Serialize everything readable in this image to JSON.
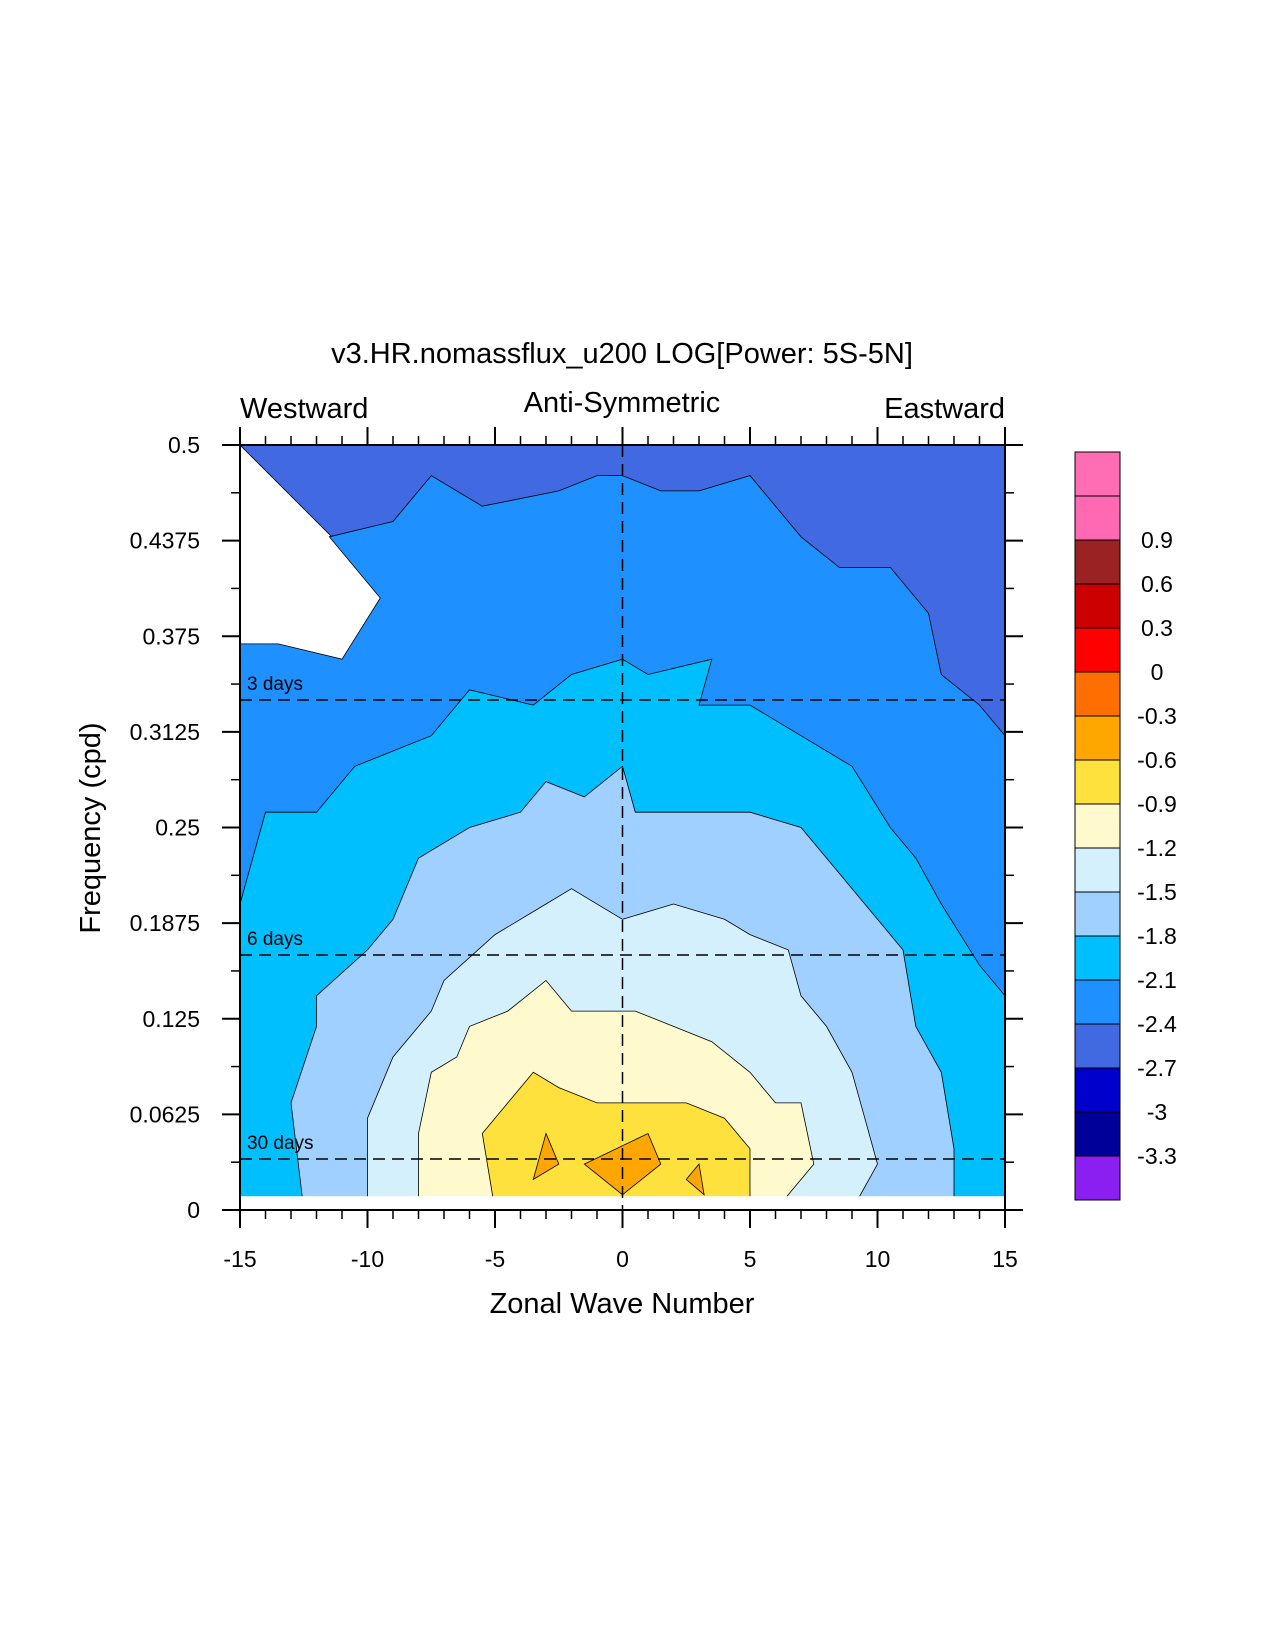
{
  "chart_data": {
    "type": "heatmap",
    "title": "v3.HR.nomassflux_u200 LOG[Power: 5S-5N]",
    "subtitle_left": "Westward",
    "subtitle_center": "Anti-Symmetric",
    "subtitle_right": "Eastward",
    "xlabel": "Zonal Wave Number",
    "ylabel": "Frequency (cpd)",
    "xlim": [
      -15,
      15
    ],
    "ylim": [
      0,
      0.5
    ],
    "x_ticks": [
      -15,
      -10,
      -5,
      0,
      5,
      10,
      15
    ],
    "x_tick_labels": [
      "-15",
      "-10",
      "-5",
      "0",
      "5",
      "10",
      "15"
    ],
    "y_ticks": [
      0,
      0.0625,
      0.125,
      0.1875,
      0.25,
      0.3125,
      0.375,
      0.4375,
      0.5
    ],
    "y_tick_labels": [
      "0",
      "0.0625",
      "0.125",
      "0.1875",
      "0.25",
      "0.3125",
      "0.375",
      "0.4375",
      "0.5"
    ],
    "reference_lines": [
      {
        "label": "3 days",
        "frequency": 0.3333
      },
      {
        "label": "6 days",
        "frequency": 0.1667
      },
      {
        "label": "30 days",
        "frequency": 0.0333
      }
    ],
    "contour_levels": [
      {
        "label": "-3.3",
        "color": "#000099"
      },
      {
        "label": "-3",
        "color": "#0000cc"
      },
      {
        "label": "-2.7",
        "color": "#4169e1"
      },
      {
        "label": "-2.4",
        "color": "#1e90ff"
      },
      {
        "label": "-2.1",
        "color": "#00bfff"
      },
      {
        "label": "-1.8",
        "color": "#a0d0ff"
      },
      {
        "label": "-1.5",
        "color": "#d4f0fc"
      },
      {
        "label": "-1.2",
        "color": "#fffacd"
      },
      {
        "label": "-0.9",
        "color": "#ffe13d"
      },
      {
        "label": "-0.6",
        "color": "#ffa600"
      },
      {
        "label": "-0.3",
        "color": "#ff6e00"
      },
      {
        "label": "0",
        "color": "#ff0000"
      },
      {
        "label": "0.3",
        "color": "#cc0000"
      },
      {
        "label": "0.6",
        "color": "#9b2222"
      },
      {
        "label": "0.9",
        "color": "#ff69b4"
      }
    ],
    "colorbar_end_colors": {
      "bottom": "#8b1ef0",
      "top": "#ff6eb4"
    },
    "field_regions": [
      {
        "level_color": "#4169e1",
        "boundary": [
          [
            -15,
            0.5
          ],
          [
            15,
            0.5
          ],
          [
            15,
            0.0
          ]
        ]
      },
      {
        "level_color": "#1e90ff",
        "boundary": [
          [
            -15,
            0.0
          ],
          [
            -15,
            0.37
          ],
          [
            -13.5,
            0.37
          ],
          [
            -11,
            0.36
          ],
          [
            -9.5,
            0.4
          ],
          [
            -11.5,
            0.44
          ],
          [
            -9,
            0.45
          ],
          [
            -7.5,
            0.48
          ],
          [
            -5.5,
            0.46
          ],
          [
            -2.5,
            0.47
          ],
          [
            -1,
            0.48
          ],
          [
            0,
            0.48
          ],
          [
            1.5,
            0.47
          ],
          [
            3,
            0.47
          ],
          [
            5,
            0.48
          ],
          [
            7,
            0.44
          ],
          [
            8.5,
            0.42
          ],
          [
            10.5,
            0.42
          ],
          [
            12,
            0.39
          ],
          [
            12.5,
            0.35
          ],
          [
            14,
            0.33
          ],
          [
            15,
            0.31
          ],
          [
            15,
            0.0
          ]
        ]
      },
      {
        "level_color": "#00bfff",
        "boundary": [
          [
            -15,
            0.0
          ],
          [
            -15,
            0.2
          ],
          [
            -14,
            0.26
          ],
          [
            -12,
            0.26
          ],
          [
            -10.5,
            0.29
          ],
          [
            -9,
            0.3
          ],
          [
            -7.5,
            0.31
          ],
          [
            -6,
            0.34
          ],
          [
            -3.5,
            0.33
          ],
          [
            -2,
            0.35
          ],
          [
            0,
            0.36
          ],
          [
            1,
            0.35
          ],
          [
            3.5,
            0.36
          ],
          [
            3,
            0.33
          ],
          [
            5,
            0.33
          ],
          [
            7,
            0.31
          ],
          [
            9,
            0.29
          ],
          [
            10.5,
            0.25
          ],
          [
            11.5,
            0.23
          ],
          [
            12.5,
            0.2
          ],
          [
            14,
            0.16
          ],
          [
            15,
            0.14
          ],
          [
            15,
            0.0
          ]
        ]
      },
      {
        "level_color": "#a0d0ff",
        "boundary": [
          [
            -12.5,
            0.0
          ],
          [
            -13,
            0.07
          ],
          [
            -12,
            0.12
          ],
          [
            -12,
            0.14
          ],
          [
            -10,
            0.17
          ],
          [
            -9,
            0.19
          ],
          [
            -8,
            0.23
          ],
          [
            -6,
            0.25
          ],
          [
            -4,
            0.26
          ],
          [
            -3,
            0.28
          ],
          [
            -1.5,
            0.27
          ],
          [
            0,
            0.29
          ],
          [
            0.5,
            0.26
          ],
          [
            3,
            0.26
          ],
          [
            5,
            0.26
          ],
          [
            7,
            0.25
          ],
          [
            8.5,
            0.22
          ],
          [
            10,
            0.19
          ],
          [
            11,
            0.17
          ],
          [
            11.5,
            0.12
          ],
          [
            12.5,
            0.09
          ],
          [
            13,
            0.04
          ],
          [
            13,
            0.0
          ]
        ]
      },
      {
        "level_color": "#d4f0fc",
        "boundary": [
          [
            -10,
            0.0
          ],
          [
            -10,
            0.06
          ],
          [
            -9,
            0.1
          ],
          [
            -7.5,
            0.13
          ],
          [
            -7,
            0.15
          ],
          [
            -5,
            0.18
          ],
          [
            -3,
            0.2
          ],
          [
            -2,
            0.21
          ],
          [
            0,
            0.19
          ],
          [
            2,
            0.2
          ],
          [
            4,
            0.19
          ],
          [
            5,
            0.18
          ],
          [
            6.5,
            0.17
          ],
          [
            7,
            0.14
          ],
          [
            8,
            0.12
          ],
          [
            9,
            0.09
          ],
          [
            9.5,
            0.06
          ],
          [
            10,
            0.03
          ],
          [
            9,
            0.0
          ]
        ]
      },
      {
        "level_color": "#fffacd",
        "boundary": [
          [
            -8,
            0.0
          ],
          [
            -8,
            0.05
          ],
          [
            -7.5,
            0.09
          ],
          [
            -6.5,
            0.1
          ],
          [
            -6,
            0.12
          ],
          [
            -4.5,
            0.13
          ],
          [
            -3,
            0.15
          ],
          [
            -2,
            0.13
          ],
          [
            -0.5,
            0.13
          ],
          [
            0.5,
            0.13
          ],
          [
            2,
            0.12
          ],
          [
            3.5,
            0.11
          ],
          [
            5,
            0.09
          ],
          [
            6,
            0.07
          ],
          [
            7,
            0.07
          ],
          [
            7.5,
            0.03
          ],
          [
            6,
            0.0
          ]
        ]
      },
      {
        "level_color": "#ffe13d",
        "boundary": [
          [
            -5,
            0.0
          ],
          [
            -5.5,
            0.05
          ],
          [
            -4.5,
            0.07
          ],
          [
            -3.5,
            0.09
          ],
          [
            -2.5,
            0.08
          ],
          [
            -1,
            0.07
          ],
          [
            1,
            0.07
          ],
          [
            2.5,
            0.07
          ],
          [
            4,
            0.06
          ],
          [
            5,
            0.04
          ],
          [
            5,
            0.0
          ]
        ]
      },
      {
        "level_color": "#ffa600",
        "boundary": [
          [
            -3.5,
            0.02
          ],
          [
            -3,
            0.05
          ],
          [
            -2.5,
            0.03
          ]
        ]
      },
      {
        "level_color": "#ffa600",
        "boundary": [
          [
            -1.5,
            0.03
          ],
          [
            1,
            0.05
          ],
          [
            1.5,
            0.03
          ],
          [
            0,
            0.01
          ]
        ]
      },
      {
        "level_color": "#ffa600",
        "boundary": [
          [
            2.5,
            0.02
          ],
          [
            3,
            0.03
          ],
          [
            3.2,
            0.01
          ]
        ]
      }
    ]
  }
}
